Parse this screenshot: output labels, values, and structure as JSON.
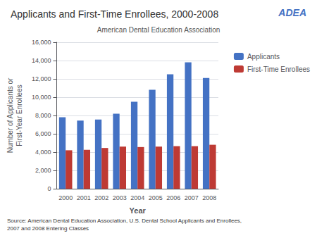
{
  "chart_data": {
    "type": "bar",
    "title": "Applicants and First-Time Enrollees, 2000-2008",
    "annotations": [
      "ADEA",
      "American Dental Education Association",
      "Source: American Dental Education Association, U.S. Dental School Applicants and Enrollees,\n2007 and 2008 Entering Classes"
    ],
    "x_label": "Year",
    "y_label": "Number of Applicants or\nFirst-Year Enrollees",
    "categories": [
      "2000",
      "2001",
      "2002",
      "2003",
      "2004",
      "2005",
      "2006",
      "2007",
      "2008"
    ],
    "series": [
      {
        "name": "Applicants",
        "color": "#4472C4",
        "values": [
          7800,
          7450,
          7550,
          8200,
          9500,
          10800,
          12500,
          13800,
          12100
        ]
      },
      {
        "name": "First-Time Enrollees",
        "color": "#BE3A34",
        "values": [
          4200,
          4250,
          4450,
          4600,
          4550,
          4600,
          4650,
          4650,
          4800
        ]
      }
    ],
    "ylim": [
      0,
      16000
    ],
    "yticks": [
      0,
      {
        "value": 2000,
        "label": "2,000"
      },
      {
        "value": 4000,
        "label": "4,000"
      },
      {
        "value": 6000,
        "label": "6,000"
      },
      {
        "value": 8000,
        "label": "8,000"
      },
      {
        "value": 10000,
        "label": "10,000"
      },
      {
        "value": 12000,
        "label": "12,000"
      },
      {
        "value": 14000,
        "label": "14,000"
      },
      {
        "value": 16000,
        "label": "16,000"
      }
    ],
    "grid": true,
    "legend": "right"
  }
}
